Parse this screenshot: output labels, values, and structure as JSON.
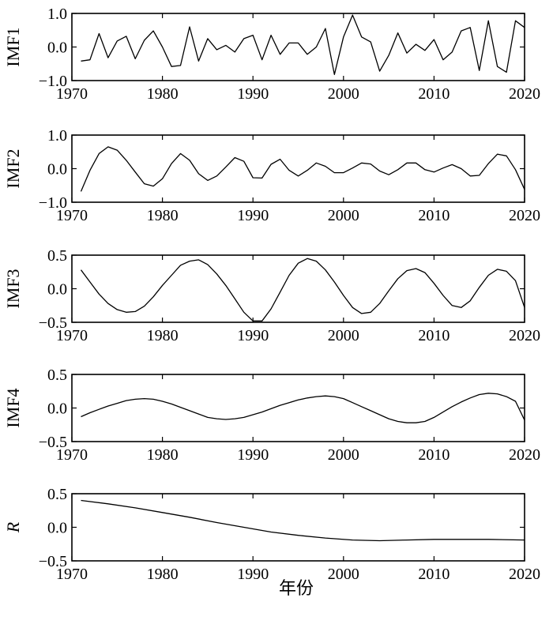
{
  "chart_data": [
    {
      "type": "line",
      "ylabel": "IMF1",
      "ylabel_italic": false,
      "xlim": [
        1970,
        2020
      ],
      "ylim": [
        -1.0,
        1.0
      ],
      "xticks": [
        1970,
        1980,
        1990,
        2000,
        2010,
        2020
      ],
      "yticks": [
        1.0,
        0.0,
        -1.0
      ],
      "ytick_labels": [
        "1.0",
        "0.0",
        "−1.0"
      ],
      "series": [
        {
          "x": [
            1971,
            1972,
            1973,
            1974,
            1975,
            1976,
            1977,
            1978,
            1979,
            1980,
            1981,
            1982,
            1983,
            1984,
            1985,
            1986,
            1987,
            1988,
            1989,
            1990,
            1991,
            1992,
            1993,
            1994,
            1995,
            1996,
            1997,
            1998,
            1999,
            2000,
            2001,
            2002,
            2003,
            2004,
            2005,
            2006,
            2007,
            2008,
            2009,
            2010,
            2011,
            2012,
            2013,
            2014,
            2015,
            2016,
            2017,
            2018,
            2019,
            2020
          ],
          "values": [
            -0.42,
            -0.38,
            0.4,
            -0.32,
            0.18,
            0.32,
            -0.35,
            0.2,
            0.48,
            0.0,
            -0.58,
            -0.55,
            0.6,
            -0.42,
            0.25,
            -0.08,
            0.05,
            -0.15,
            0.25,
            0.35,
            -0.38,
            0.35,
            -0.22,
            0.12,
            0.12,
            -0.22,
            0.0,
            0.55,
            -0.82,
            0.3,
            0.95,
            0.3,
            0.15,
            -0.72,
            -0.25,
            0.42,
            -0.18,
            0.08,
            -0.1,
            0.22,
            -0.38,
            -0.15,
            0.48,
            0.58,
            -0.7,
            0.78,
            -0.58,
            -0.75,
            0.78,
            0.58
          ]
        }
      ]
    },
    {
      "type": "line",
      "ylabel": "IMF2",
      "ylabel_italic": false,
      "xlim": [
        1970,
        2020
      ],
      "ylim": [
        -1.0,
        1.0
      ],
      "xticks": [
        1970,
        1980,
        1990,
        2000,
        2010,
        2020
      ],
      "yticks": [
        1.0,
        0.0,
        -1.0
      ],
      "ytick_labels": [
        "1.0",
        "0.0",
        "−1.0"
      ],
      "series": [
        {
          "x": [
            1971,
            1972,
            1973,
            1974,
            1975,
            1976,
            1977,
            1978,
            1979,
            1980,
            1981,
            1982,
            1983,
            1984,
            1985,
            1986,
            1987,
            1988,
            1989,
            1990,
            1991,
            1992,
            1993,
            1994,
            1995,
            1996,
            1997,
            1998,
            1999,
            2000,
            2001,
            2002,
            2003,
            2004,
            2005,
            2006,
            2007,
            2008,
            2009,
            2010,
            2011,
            2012,
            2013,
            2014,
            2015,
            2016,
            2017,
            2018,
            2019,
            2020
          ],
          "values": [
            -0.68,
            -0.05,
            0.45,
            0.65,
            0.55,
            0.25,
            -0.1,
            -0.45,
            -0.52,
            -0.3,
            0.15,
            0.45,
            0.25,
            -0.15,
            -0.35,
            -0.22,
            0.05,
            0.33,
            0.22,
            -0.27,
            -0.28,
            0.13,
            0.28,
            -0.05,
            -0.22,
            -0.05,
            0.17,
            0.07,
            -0.12,
            -0.12,
            0.02,
            0.17,
            0.14,
            -0.07,
            -0.18,
            -0.03,
            0.17,
            0.17,
            -0.03,
            -0.1,
            0.02,
            0.12,
            0.0,
            -0.22,
            -0.2,
            0.15,
            0.43,
            0.38,
            -0.03,
            -0.62
          ]
        }
      ]
    },
    {
      "type": "line",
      "ylabel": "IMF3",
      "ylabel_italic": false,
      "xlim": [
        1970,
        2020
      ],
      "ylim": [
        -0.5,
        0.5
      ],
      "xticks": [
        1970,
        1980,
        1990,
        2000,
        2010,
        2020
      ],
      "yticks": [
        0.5,
        0.0,
        -0.5
      ],
      "ytick_labels": [
        "0.5",
        "0.0",
        "−0.5"
      ],
      "series": [
        {
          "x": [
            1971,
            1972,
            1973,
            1974,
            1975,
            1976,
            1977,
            1978,
            1979,
            1980,
            1981,
            1982,
            1983,
            1984,
            1985,
            1986,
            1987,
            1988,
            1989,
            1990,
            1991,
            1992,
            1993,
            1994,
            1995,
            1996,
            1997,
            1998,
            1999,
            2000,
            2001,
            2002,
            2003,
            2004,
            2005,
            2006,
            2007,
            2008,
            2009,
            2010,
            2011,
            2012,
            2013,
            2014,
            2015,
            2016,
            2017,
            2018,
            2019,
            2020
          ],
          "values": [
            0.28,
            0.1,
            -0.08,
            -0.22,
            -0.31,
            -0.35,
            -0.34,
            -0.26,
            -0.12,
            0.05,
            0.2,
            0.35,
            0.41,
            0.43,
            0.36,
            0.22,
            0.05,
            -0.15,
            -0.35,
            -0.48,
            -0.48,
            -0.3,
            -0.05,
            0.2,
            0.38,
            0.45,
            0.41,
            0.28,
            0.1,
            -0.1,
            -0.28,
            -0.37,
            -0.35,
            -0.22,
            -0.03,
            0.15,
            0.27,
            0.3,
            0.24,
            0.08,
            -0.1,
            -0.25,
            -0.28,
            -0.18,
            0.02,
            0.2,
            0.29,
            0.26,
            0.12,
            -0.28
          ]
        }
      ]
    },
    {
      "type": "line",
      "ylabel": "IMF4",
      "ylabel_italic": false,
      "xlim": [
        1970,
        2020
      ],
      "ylim": [
        -0.5,
        0.5
      ],
      "xticks": [
        1970,
        1980,
        1990,
        2000,
        2010,
        2020
      ],
      "yticks": [
        0.5,
        0.0,
        -0.5
      ],
      "ytick_labels": [
        "0.5",
        "0.0",
        "−0.5"
      ],
      "series": [
        {
          "x": [
            1971,
            1972,
            1973,
            1974,
            1975,
            1976,
            1977,
            1978,
            1979,
            1980,
            1981,
            1982,
            1983,
            1984,
            1985,
            1986,
            1987,
            1988,
            1989,
            1990,
            1991,
            1992,
            1993,
            1994,
            1995,
            1996,
            1997,
            1998,
            1999,
            2000,
            2001,
            2002,
            2003,
            2004,
            2005,
            2006,
            2007,
            2008,
            2009,
            2010,
            2011,
            2012,
            2013,
            2014,
            2015,
            2016,
            2017,
            2018,
            2019,
            2020
          ],
          "values": [
            -0.13,
            -0.07,
            -0.02,
            0.03,
            0.07,
            0.11,
            0.13,
            0.14,
            0.13,
            0.1,
            0.06,
            0.01,
            -0.04,
            -0.09,
            -0.14,
            -0.16,
            -0.17,
            -0.16,
            -0.14,
            -0.1,
            -0.06,
            -0.01,
            0.04,
            0.08,
            0.12,
            0.15,
            0.17,
            0.18,
            0.17,
            0.14,
            0.08,
            0.02,
            -0.04,
            -0.1,
            -0.16,
            -0.2,
            -0.22,
            -0.22,
            -0.2,
            -0.14,
            -0.06,
            0.02,
            0.09,
            0.15,
            0.2,
            0.22,
            0.21,
            0.17,
            0.1,
            -0.18
          ]
        }
      ]
    },
    {
      "type": "line",
      "ylabel": "R",
      "ylabel_italic": true,
      "xlim": [
        1970,
        2020
      ],
      "ylim": [
        -0.5,
        0.5
      ],
      "xticks": [
        1970,
        1980,
        1990,
        2000,
        2010,
        2020
      ],
      "yticks": [
        0.5,
        0.0,
        -0.5
      ],
      "ytick_labels": [
        "0.5",
        "0.0",
        "−0.5"
      ],
      "series": [
        {
          "x": [
            1971,
            1974,
            1977,
            1980,
            1983,
            1986,
            1989,
            1992,
            1995,
            1998,
            2001,
            2004,
            2007,
            2010,
            2013,
            2016,
            2020
          ],
          "values": [
            0.4,
            0.35,
            0.29,
            0.22,
            0.15,
            0.07,
            0.0,
            -0.07,
            -0.12,
            -0.16,
            -0.19,
            -0.2,
            -0.19,
            -0.18,
            -0.18,
            -0.18,
            -0.19
          ]
        }
      ]
    }
  ],
  "xlabel": "年份"
}
